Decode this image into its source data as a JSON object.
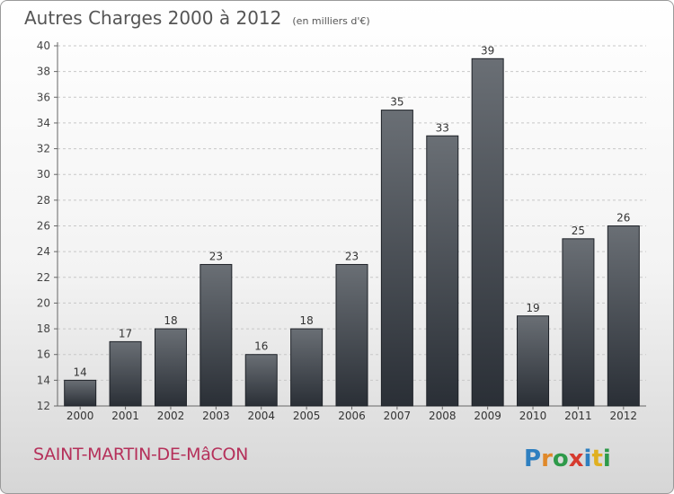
{
  "header": {
    "title": "Autres Charges 2000 à 2012",
    "unit": "(en milliers d'€)"
  },
  "footer": {
    "commune": "SAINT-MARTIN-DE-MâCON",
    "logo_text": "Proxiti"
  },
  "colors": {
    "bar_top": "#6a6f75",
    "bar_bottom": "#2a2f36",
    "commune": "#b5305a"
  },
  "chart_data": {
    "type": "bar",
    "title": "Autres Charges 2000 à 2012",
    "subtitle": "(en milliers d'€)",
    "categories": [
      "2000",
      "2001",
      "2002",
      "2003",
      "2004",
      "2005",
      "2006",
      "2007",
      "2008",
      "2009",
      "2010",
      "2011",
      "2012"
    ],
    "values": [
      14,
      17,
      18,
      23,
      16,
      18,
      23,
      35,
      33,
      39,
      19,
      25,
      26
    ],
    "ylim": [
      12,
      40
    ],
    "yticks": [
      12,
      14,
      16,
      18,
      20,
      22,
      24,
      26,
      28,
      30,
      32,
      34,
      36,
      38,
      40
    ],
    "grid": true,
    "data_labels": true
  }
}
